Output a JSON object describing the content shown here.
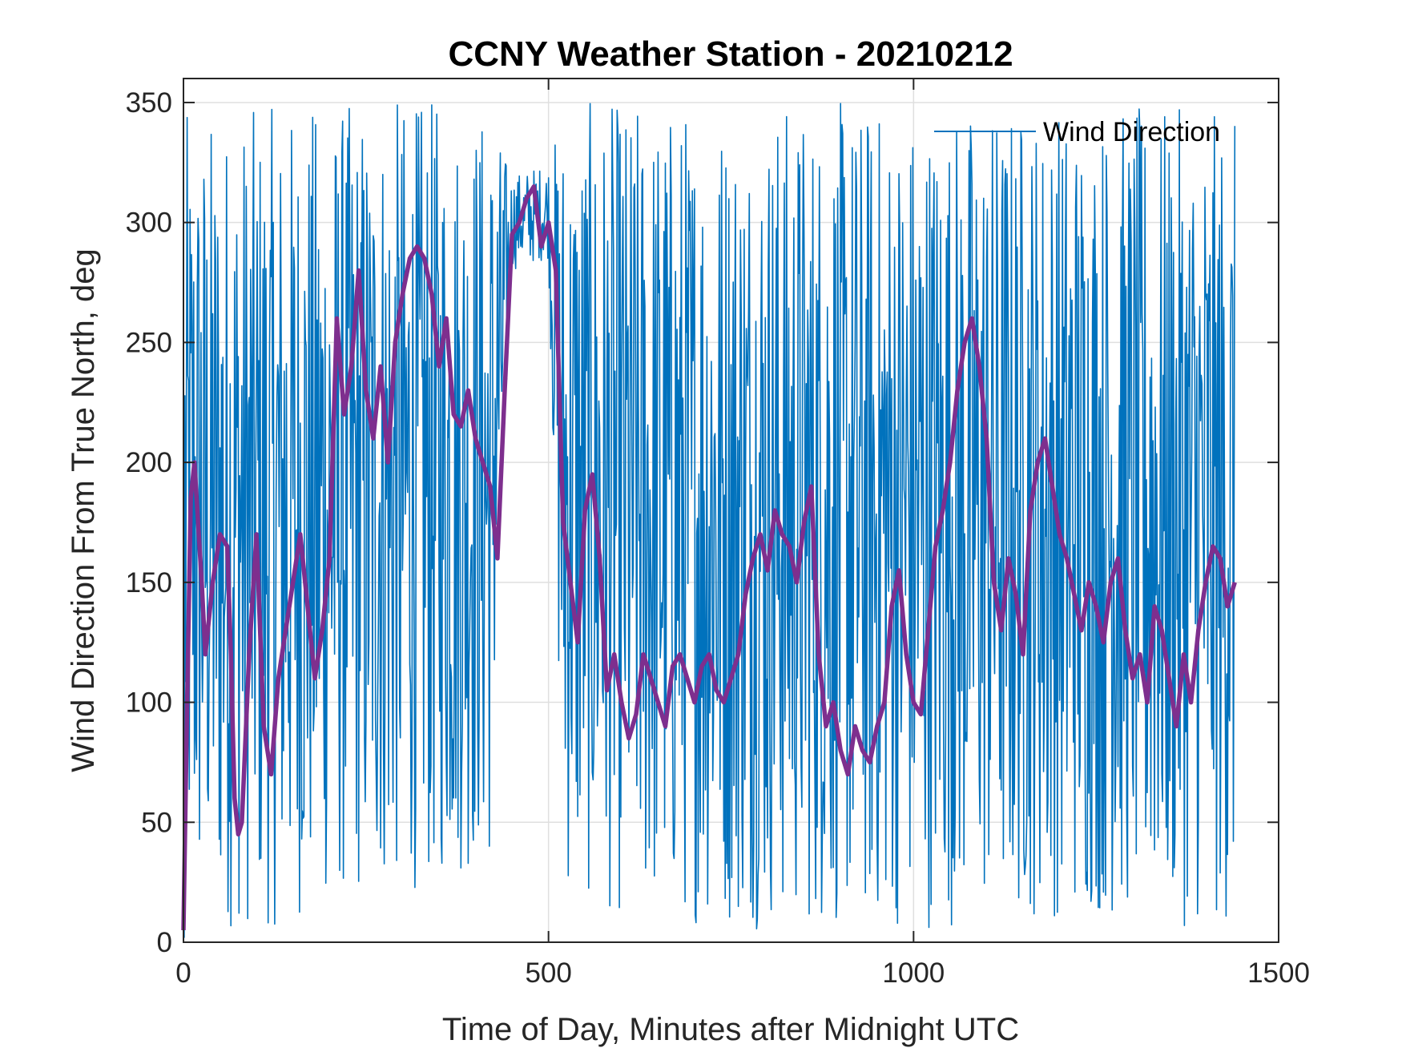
{
  "chart_data": {
    "type": "line",
    "title": "CCNY Weather Station - 20210212",
    "xlabel": "Time of Day, Minutes after Midnight UTC",
    "ylabel": "Wind Direction From True North, deg",
    "xlim": [
      0,
      1500
    ],
    "ylim": [
      0,
      360
    ],
    "xticks": [
      0,
      500,
      1000,
      1500
    ],
    "xtick_labels": [
      "0",
      "500",
      "1000",
      "1500"
    ],
    "yticks": [
      0,
      50,
      100,
      150,
      200,
      250,
      300,
      350
    ],
    "ytick_labels": [
      "0",
      "50",
      "100",
      "150",
      "200",
      "250",
      "300",
      "350"
    ],
    "grid": true,
    "legend": {
      "location": "top-right",
      "entries": [
        "Wind Direction"
      ]
    },
    "series": [
      {
        "name": "Wind Direction",
        "color": "#0072BD",
        "style": "thin line, rapidly oscillating between ~0 and ~350 deg each sample (1-minute samples 0-1440)",
        "envelope_low": [
          [
            0,
            5
          ],
          [
            120,
            5
          ],
          [
            200,
            15
          ],
          [
            300,
            20
          ],
          [
            420,
            30
          ],
          [
            450,
            280
          ],
          [
            500,
            285
          ],
          [
            520,
            20
          ],
          [
            600,
            10
          ],
          [
            800,
            5
          ],
          [
            1000,
            5
          ],
          [
            1200,
            10
          ],
          [
            1440,
            5
          ]
        ],
        "envelope_high": [
          [
            0,
            345
          ],
          [
            200,
            350
          ],
          [
            300,
            352
          ],
          [
            420,
            350
          ],
          [
            450,
            320
          ],
          [
            500,
            325
          ],
          [
            520,
            350
          ],
          [
            800,
            352
          ],
          [
            1000,
            350
          ],
          [
            1200,
            352
          ],
          [
            1440,
            345
          ]
        ]
      },
      {
        "name": "",
        "color": "#7E2F8E",
        "style": "thick smoothed line (running mean)",
        "x": [
          0,
          5,
          10,
          15,
          20,
          25,
          30,
          40,
          50,
          60,
          65,
          70,
          75,
          80,
          90,
          100,
          110,
          120,
          130,
          140,
          150,
          160,
          170,
          180,
          190,
          200,
          210,
          220,
          230,
          240,
          250,
          260,
          270,
          280,
          290,
          300,
          310,
          320,
          330,
          340,
          350,
          360,
          370,
          380,
          390,
          400,
          410,
          420,
          430,
          440,
          450,
          460,
          470,
          480,
          490,
          500,
          510,
          520,
          530,
          540,
          550,
          560,
          570,
          580,
          590,
          600,
          610,
          620,
          630,
          640,
          650,
          660,
          670,
          680,
          690,
          700,
          710,
          720,
          730,
          740,
          750,
          760,
          770,
          780,
          790,
          800,
          810,
          820,
          830,
          840,
          850,
          860,
          870,
          880,
          890,
          900,
          910,
          920,
          930,
          940,
          950,
          960,
          970,
          980,
          990,
          1000,
          1010,
          1020,
          1030,
          1040,
          1050,
          1060,
          1070,
          1080,
          1090,
          1100,
          1110,
          1120,
          1130,
          1140,
          1150,
          1160,
          1170,
          1180,
          1190,
          1200,
          1210,
          1220,
          1230,
          1240,
          1250,
          1260,
          1270,
          1280,
          1290,
          1300,
          1310,
          1320,
          1330,
          1340,
          1350,
          1360,
          1370,
          1380,
          1390,
          1400,
          1410,
          1420,
          1430,
          1440
        ],
        "y": [
          5,
          100,
          185,
          200,
          175,
          150,
          120,
          150,
          170,
          165,
          120,
          60,
          45,
          50,
          120,
          170,
          90,
          70,
          110,
          130,
          150,
          170,
          140,
          110,
          130,
          160,
          260,
          220,
          240,
          280,
          230,
          210,
          240,
          200,
          250,
          270,
          285,
          290,
          285,
          270,
          240,
          260,
          220,
          215,
          230,
          210,
          200,
          190,
          160,
          230,
          295,
          300,
          310,
          315,
          290,
          300,
          280,
          175,
          150,
          125,
          180,
          195,
          160,
          105,
          120,
          100,
          85,
          95,
          120,
          110,
          100,
          90,
          115,
          120,
          110,
          100,
          115,
          120,
          105,
          100,
          110,
          120,
          145,
          160,
          170,
          155,
          180,
          170,
          165,
          150,
          175,
          190,
          120,
          90,
          100,
          80,
          70,
          90,
          80,
          75,
          90,
          100,
          140,
          155,
          120,
          100,
          95,
          130,
          165,
          180,
          200,
          230,
          250,
          260,
          240,
          210,
          150,
          130,
          160,
          145,
          120,
          180,
          200,
          210,
          190,
          170,
          160,
          145,
          130,
          150,
          140,
          125,
          150,
          160,
          130,
          110,
          120,
          100,
          140,
          130,
          110,
          90,
          120,
          100,
          130,
          150,
          165,
          160,
          140,
          150
        ]
      }
    ]
  }
}
